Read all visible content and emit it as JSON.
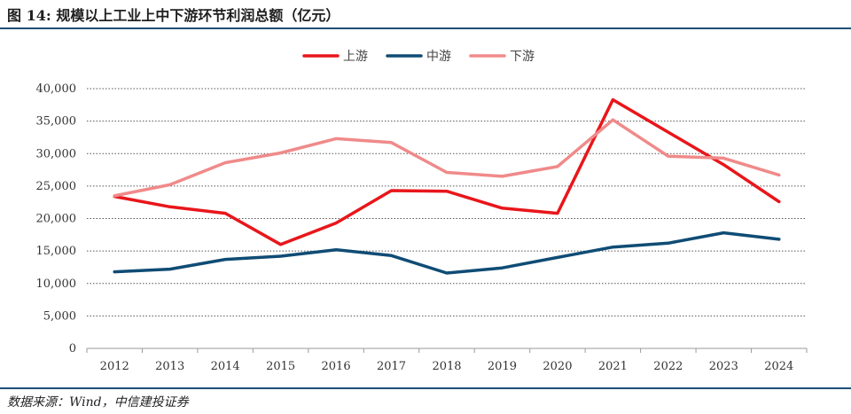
{
  "header": {
    "title": "图 14:  规模以上工业上中下游环节利润总额（亿元）"
  },
  "footer": {
    "source": "数据来源：Wind，中信建投证券"
  },
  "colors": {
    "rule": "#1f4e79",
    "upstream": "#e8161b",
    "midstream": "#0f4c75",
    "downstream": "#f08a8a",
    "grid": "#555555"
  },
  "chart_data": {
    "type": "line",
    "title": "规模以上工业上中下游环节利润总额（亿元）",
    "xlabel": "",
    "ylabel": "",
    "ylim": [
      0,
      40000
    ],
    "y_ticks": [
      "0",
      "5,000",
      "10,000",
      "15,000",
      "20,000",
      "25,000",
      "30,000",
      "35,000",
      "40,000"
    ],
    "grid": "horizontal dotted",
    "legend_position": "top-center",
    "categories": [
      "2012",
      "2013",
      "2014",
      "2015",
      "2016",
      "2017",
      "2018",
      "2019",
      "2020",
      "2021",
      "2022",
      "2023",
      "2024"
    ],
    "series": [
      {
        "name": "上游",
        "color": "#e8161b",
        "values": [
          23400,
          21800,
          20800,
          16000,
          19300,
          24300,
          24200,
          21600,
          20800,
          38300,
          33300,
          28300,
          22600
        ]
      },
      {
        "name": "中游",
        "color": "#0f4c75",
        "values": [
          11800,
          12200,
          13700,
          14200,
          15200,
          14300,
          11600,
          12400,
          14000,
          15600,
          16200,
          17800,
          16800
        ]
      },
      {
        "name": "下游",
        "color": "#f08a8a",
        "values": [
          23500,
          25200,
          28600,
          30100,
          32300,
          31700,
          27100,
          26500,
          28000,
          35200,
          29600,
          29300,
          26700
        ]
      }
    ]
  }
}
